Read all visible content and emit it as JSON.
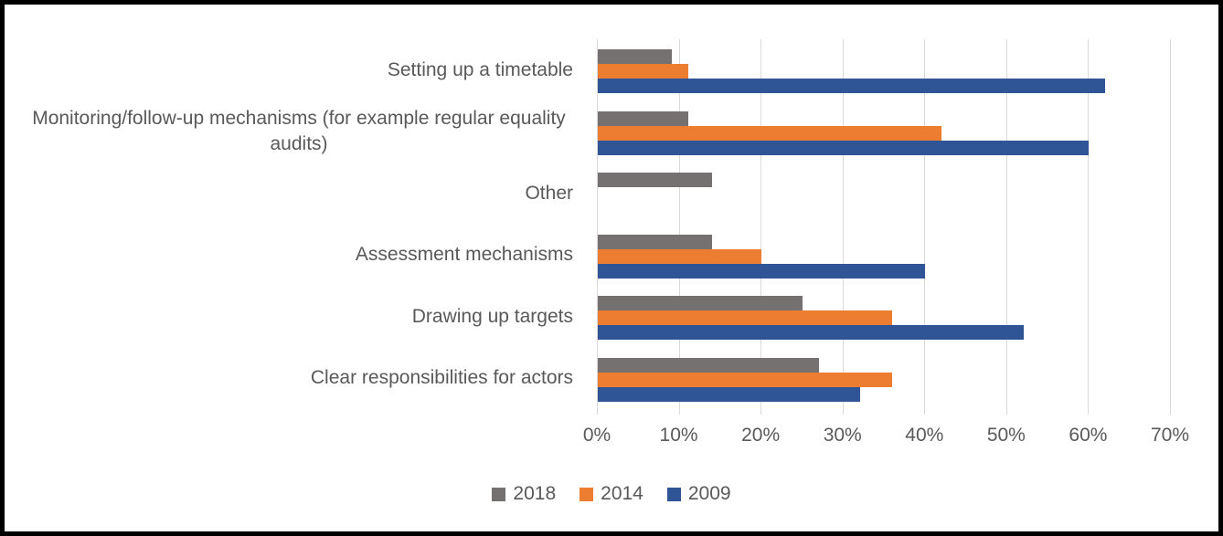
{
  "chart_data": {
    "type": "bar",
    "orientation": "horizontal",
    "title": "",
    "xlabel": "",
    "ylabel": "",
    "categories": [
      "Setting up a timetable",
      "Monitoring/follow-up mechanisms (for example regular equality audits)",
      "Other",
      "Assessment mechanisms",
      "Drawing up targets",
      "Clear responsibilities for actors"
    ],
    "series": [
      {
        "name": "2018",
        "color": "#767171",
        "values": [
          9,
          11,
          14,
          14,
          25,
          27
        ]
      },
      {
        "name": "2014",
        "color": "#ED7D31",
        "values": [
          11,
          42,
          0,
          20,
          36,
          36
        ]
      },
      {
        "name": "2009",
        "color": "#2F5597",
        "values": [
          62,
          60,
          0,
          40,
          52,
          32
        ]
      }
    ],
    "x_axis": {
      "tick_labels": [
        "0%",
        "10%",
        "20%",
        "30%",
        "40%",
        "50%",
        "60%",
        "70%"
      ],
      "min": 0,
      "max": 70,
      "unit": "%"
    },
    "legend": {
      "position": "bottom",
      "entries": [
        "2018",
        "2014",
        "2009"
      ]
    },
    "grid": "vertical-on",
    "colors": {
      "gridline": "#D9D9D9",
      "text": "#595959",
      "background": "#FFFFFF",
      "border": "#000000"
    }
  }
}
